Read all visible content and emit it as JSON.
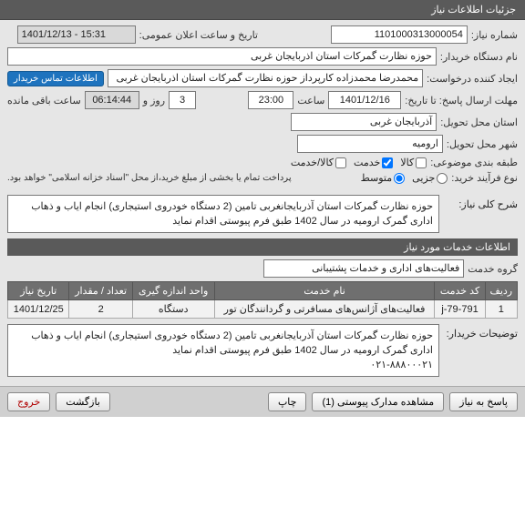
{
  "header_title": "جزئیات اطلاعات نیاز",
  "labels": {
    "need_no": "شماره نیاز:",
    "publish_dt": "تاریخ و ساعت اعلان عمومی:",
    "buyer_unit": "نام دستگاه خریدار:",
    "requester": "ایجاد کننده درخواست:",
    "contact_btn": "اطلاعات تماس خریدار",
    "reply_deadline": "مهلت ارسال پاسخ: تا تاریخ:",
    "saat": "ساعت",
    "rooz_o": "روز و",
    "remain": "ساعت باقی مانده",
    "tahvil_state": "استان محل تحویل:",
    "tahvil_city": "شهر محل تحویل:",
    "tabaghe": "طبقه بندی موضوعی:",
    "no_farayand": "نوع فرآیند خرید:",
    "sharh_kolli": "شرح کلی نیاز:",
    "info_services": "اطلاعات خدمات مورد نیاز",
    "group_service": "گروه خدمت",
    "tozihat": "توضیحات خریدار:",
    "kala": "کالا",
    "khedmat": "خدمت",
    "kala_khedmat": "کالا/خدمت",
    "jozi": "جزیی",
    "motavaset": "متوسط",
    "footer_reply": "پاسخ به نیاز",
    "footer_docs": "مشاهده مدارک پیوستی (1)",
    "footer_print": "چاپ",
    "footer_back": "بازگشت",
    "footer_exit": "خروج"
  },
  "values": {
    "need_no": "1101000313000054",
    "publish_dt": "1401/12/13 - 15:31",
    "buyer_unit": "حوزه نظارت گمرکات استان اذربایجان غربی",
    "requester": "محمدرضا محمدزاده کارپرداز حوزه نظارت گمرکات استان اذربایجان غربی",
    "deadline_date": "1401/12/16",
    "deadline_time": "23:00",
    "days_remain": "3",
    "time_remain": "06:14:44",
    "tahvil_state": "آذربایجان غربی",
    "tahvil_city": "ارومیه",
    "sharh_kolli": "حوزه نظارت گمرکات استان آذربایجانغربی  تامین (2 دستگاه خودروی استیجاری) انجام ایاب و ذهاب اداری گمرک ارومیه در سال 1402 طبق فرم پیوستی اقدام نماید",
    "tozihat": "حوزه نظارت گمرکات استان آذربایجانغربی  تامین (2 دستگاه خودروی استیجاری) انجام ایاب و ذهاب اداری گمرک ارومیه در سال 1402 طبق فرم پیوستی اقدام نماید\n۰۲۱-۸۸۸۰۰۰۲۱",
    "group_service": "فعالیت‌های اداری و خدمات پشتیبانی",
    "no_farayand_note": "پرداخت تمام یا بخشی از مبلغ خرید،از محل \"اسناد خزانه اسلامی\" خواهد بود."
  },
  "grid": {
    "columns": [
      "ردیف",
      "کد خدمت",
      "نام خدمت",
      "واحد اندازه گیری",
      "تعداد / مقدار",
      "تاریخ نیاز"
    ],
    "rows": [
      [
        "1",
        "j-79-791",
        "فعالیت‌های آژانس‌های مسافرتی و گردانندگان تور",
        "دستگاه",
        "2",
        "1401/12/25"
      ]
    ]
  },
  "tabaghe_checked": "khedmat",
  "farayand_checked": "motavaset"
}
